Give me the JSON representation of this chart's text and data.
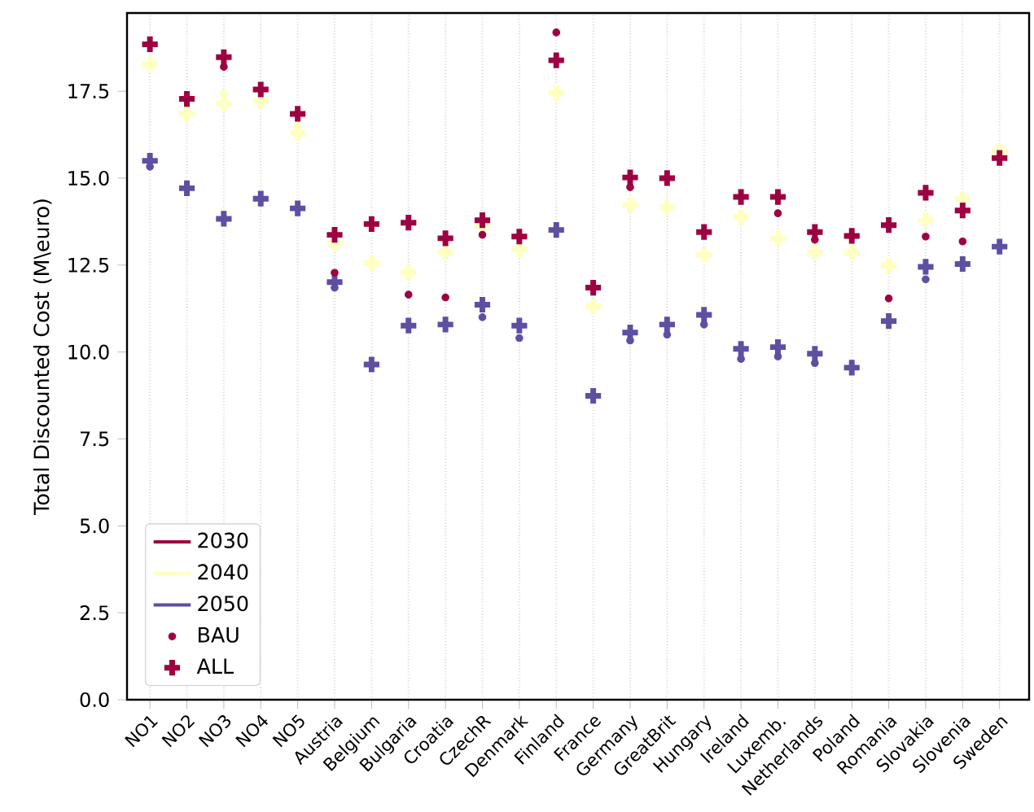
{
  "chart_data": {
    "type": "scatter",
    "ylabel": "Total Discounted Cost (M\\euro)",
    "categories": [
      "NO1",
      "NO2",
      "NO3",
      "NO4",
      "NO5",
      "Austria",
      "Belgium",
      "Bulgaria",
      "Croatia",
      "CzechR",
      "Denmark",
      "Finland",
      "France",
      "Germany",
      "GreatBrit",
      "Hungary",
      "Ireland",
      "Luxemb.",
      "Netherlands",
      "Poland",
      "Romania",
      "Slovakia",
      "Slovenia",
      "Sweden"
    ],
    "ylim": [
      0,
      19.75
    ],
    "yticks": [
      {
        "value": 0,
        "label": "0.0"
      },
      2.5,
      {
        "value": 5,
        "label": "5.0"
      },
      7.5,
      {
        "value": 10,
        "label": "10.0"
      },
      12.5,
      {
        "value": 15,
        "label": "15.0"
      },
      17.5
    ],
    "grid": "x",
    "legend": "bottom left",
    "series": [
      {
        "name": "2030",
        "type": "line",
        "color": "#9e0142",
        "values": [
          null,
          null,
          null,
          null,
          null,
          null,
          null,
          null,
          null,
          null,
          null,
          null,
          null,
          null,
          null,
          null,
          null,
          null,
          null,
          null,
          null,
          null,
          null,
          null
        ]
      },
      {
        "name": "2040",
        "type": "line",
        "color": "#ffffbf",
        "values": [
          null,
          null,
          null,
          null,
          null,
          null,
          null,
          null,
          null,
          null,
          null,
          null,
          null,
          null,
          null,
          null,
          null,
          null,
          null,
          null,
          null,
          null,
          null,
          null
        ]
      },
      {
        "name": "2050",
        "type": "line",
        "color": "#5e4fa2",
        "values": [
          null,
          null,
          null,
          null,
          null,
          null,
          null,
          null,
          null,
          null,
          null,
          null,
          null,
          null,
          null,
          null,
          null,
          null,
          null,
          null,
          null,
          null,
          null,
          null
        ]
      },
      {
        "name": "BAU",
        "marker": "circle",
        "color": "#9e0142",
        "values": [
          null,
          null,
          18.2,
          null,
          null,
          12.28,
          null,
          11.65,
          11.57,
          13.37,
          null,
          19.19,
          null,
          14.74,
          null,
          null,
          null,
          13.99,
          13.23,
          null,
          11.54,
          13.32,
          13.18,
          null
        ]
      },
      {
        "name": "ALL",
        "marker": "cross",
        "color": "#9e0142",
        "values": [
          18.85,
          17.28,
          18.48,
          17.55,
          16.85,
          13.37,
          13.68,
          13.72,
          13.27,
          13.79,
          13.32,
          18.39,
          11.85,
          15.02,
          15.0,
          13.45,
          14.46,
          14.46,
          13.45,
          13.34,
          13.65,
          14.58,
          14.07,
          15.58
        ]
      },
      {
        "marker": "circle",
        "color": "#ffffbf",
        "values": [
          null,
          null,
          17.43,
          null,
          16.5,
          null,
          null,
          null,
          null,
          null,
          null,
          null,
          null,
          null,
          null,
          null,
          null,
          null,
          null,
          null,
          null,
          null,
          null,
          null
        ]
      },
      {
        "marker": "cross",
        "color": "#ffffbf",
        "values": [
          18.28,
          16.85,
          17.15,
          17.22,
          16.3,
          13.13,
          12.56,
          12.29,
          12.87,
          13.62,
          12.95,
          17.45,
          11.31,
          14.23,
          14.16,
          12.79,
          13.88,
          13.27,
          12.87,
          12.87,
          12.48,
          13.8,
          14.4,
          15.77
        ]
      },
      {
        "marker": "circle",
        "color": "#5e4fa2",
        "values": [
          15.33,
          null,
          null,
          null,
          null,
          11.85,
          null,
          null,
          null,
          11.0,
          10.4,
          null,
          null,
          10.33,
          10.5,
          10.79,
          9.8,
          9.87,
          9.68,
          null,
          null,
          12.09,
          null,
          null
        ]
      },
      {
        "marker": "cross",
        "color": "#5e4fa2",
        "values": [
          15.5,
          14.71,
          13.83,
          14.41,
          14.13,
          12.01,
          9.64,
          10.76,
          10.79,
          11.36,
          10.76,
          13.51,
          8.74,
          10.56,
          10.79,
          11.07,
          10.09,
          10.14,
          9.95,
          9.55,
          10.89,
          12.45,
          12.53,
          13.03
        ]
      }
    ]
  }
}
